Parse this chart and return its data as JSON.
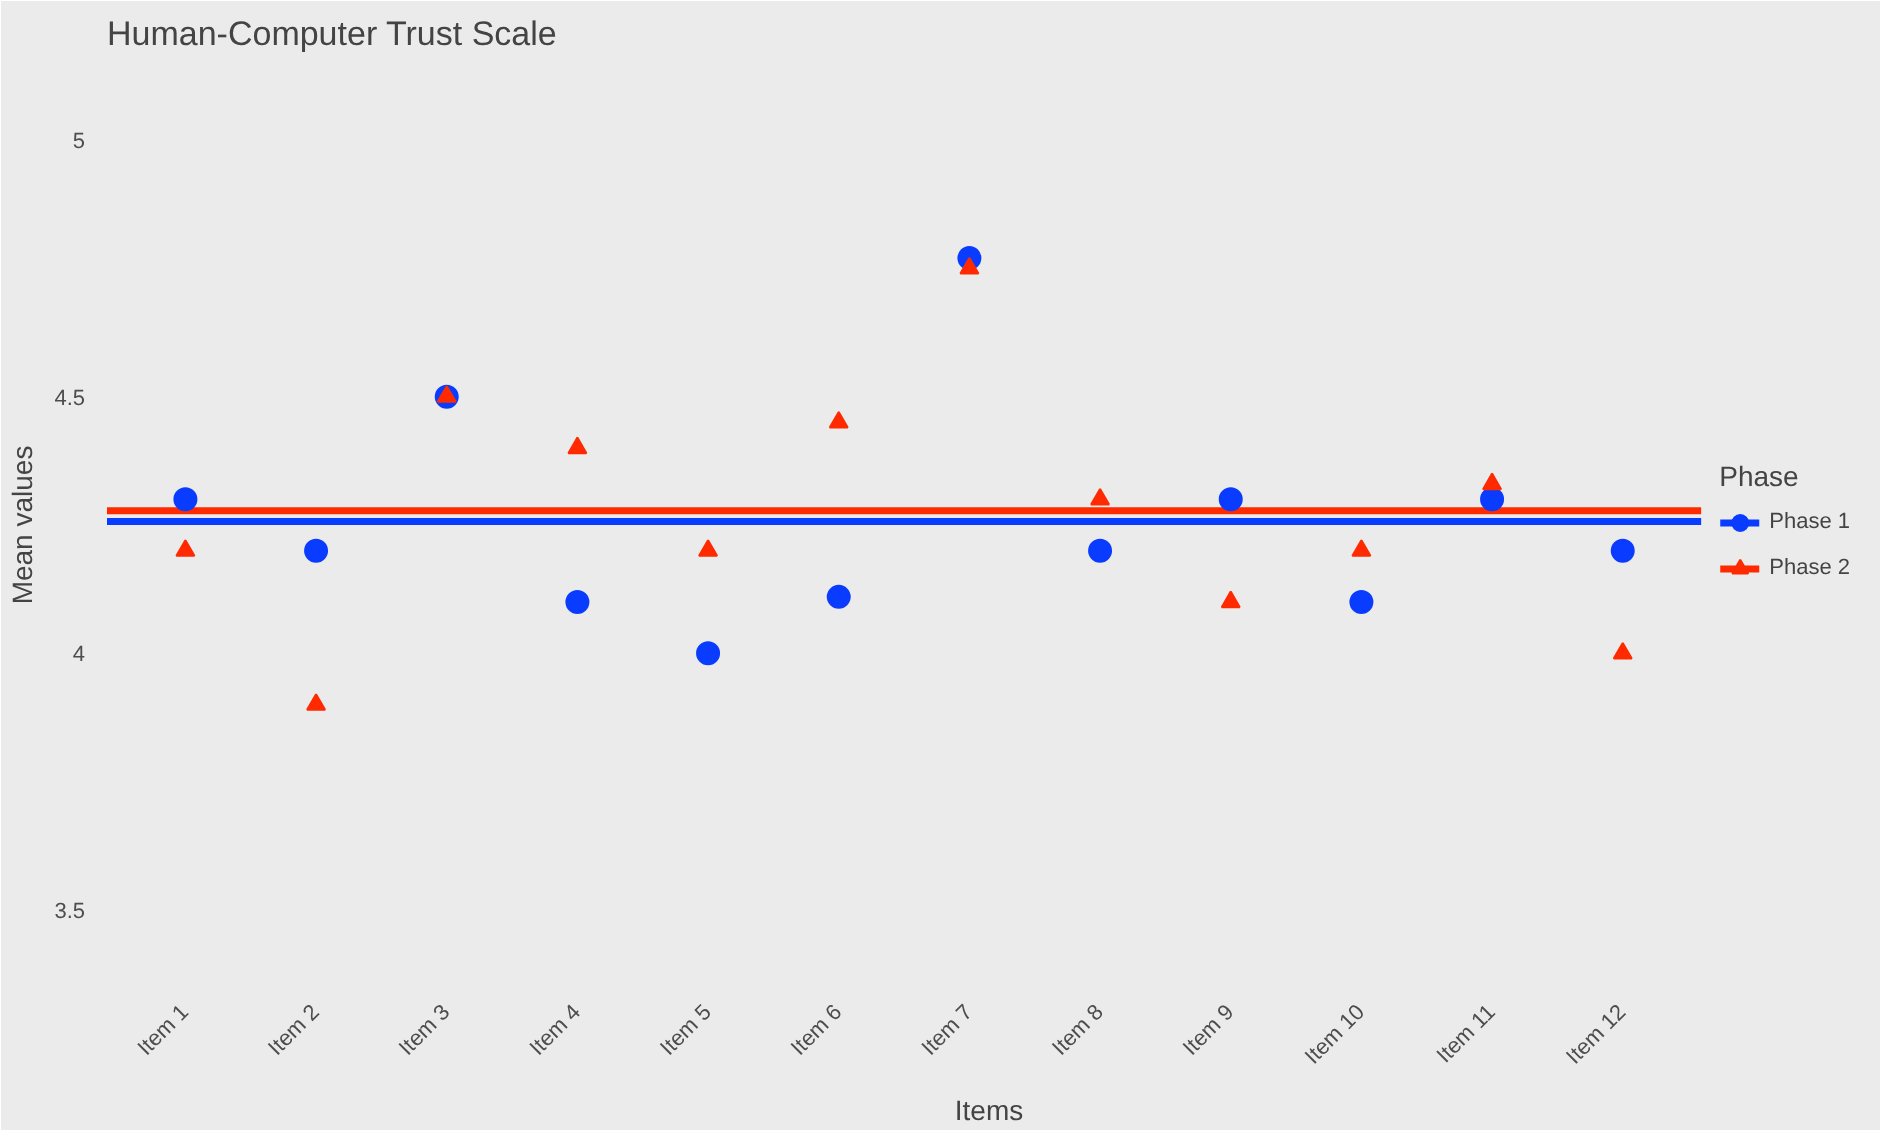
{
  "chart_data": {
    "type": "scatter",
    "title": "Human-Computer Trust Scale",
    "xlabel": "Items",
    "ylabel": "Mean values",
    "legend_title": "Phase",
    "categories": [
      "Item 1",
      "Item 2",
      "Item 3",
      "Item 4",
      "Item 5",
      "Item 6",
      "Item 7",
      "Item 8",
      "Item 9",
      "Item 10",
      "Item 11",
      "Item 12"
    ],
    "series": [
      {
        "name": "Phase 1",
        "color": "#0a3cff",
        "marker": "circle",
        "values": [
          4.3,
          4.2,
          4.5,
          4.1,
          4.0,
          4.11,
          4.77,
          4.2,
          4.3,
          4.1,
          4.3,
          4.2
        ]
      },
      {
        "name": "Phase 2",
        "color": "#ff2a00",
        "marker": "triangle",
        "values": [
          4.2,
          3.9,
          4.5,
          4.4,
          4.2,
          4.45,
          4.75,
          4.3,
          4.1,
          4.2,
          4.33,
          4.0
        ]
      }
    ],
    "ref_lines": [
      {
        "axis": "y",
        "value": 4.257,
        "color": "#0a3cff"
      },
      {
        "axis": "y",
        "value": 4.278,
        "color": "#ff2a00"
      }
    ],
    "ylim": [
      3.35,
      5.15
    ],
    "yticks": [
      3.5,
      4,
      4.5,
      5
    ],
    "grid": false,
    "legend": "right"
  }
}
